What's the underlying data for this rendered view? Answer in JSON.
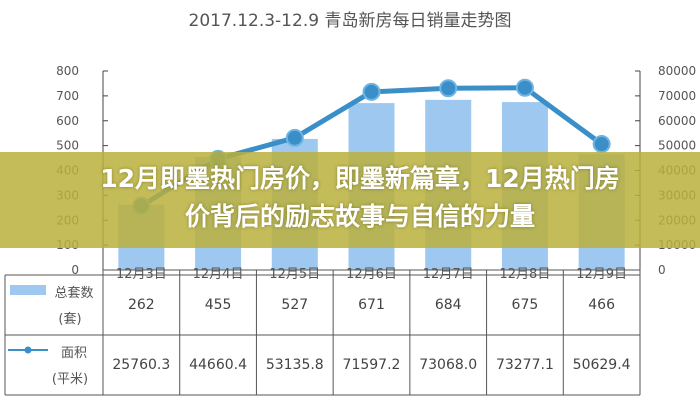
{
  "banner": {
    "title": "12月即墨热门房价，即墨新篇章，12月热门房价背后的励志故事与自信的力量"
  },
  "chart_data": {
    "type": "bar+line",
    "title": "2017.12.3-12.9  青岛新房每日销量走势图",
    "categories": [
      "12月3日",
      "12月4日",
      "12月5日",
      "12月6日",
      "12月7日",
      "12月8日",
      "12月9日"
    ],
    "series": [
      {
        "name": "总套数(套)",
        "type": "bar",
        "axis": "left",
        "values": [
          262,
          455,
          527,
          671,
          684,
          675,
          466
        ],
        "color": "#9ec8f0"
      },
      {
        "name": "面积(平米)",
        "type": "line",
        "axis": "right",
        "values": [
          25760.3,
          44660.4,
          53135.8,
          71597.2,
          73068.0,
          73277.1,
          50629.4
        ],
        "color": "#3a8fc8"
      }
    ],
    "left_ticks": [
      "0",
      "100",
      "200",
      "300",
      "400",
      "500",
      "600",
      "700",
      "800"
    ],
    "right_ticks": [
      "0",
      "10000",
      "20000",
      "30000",
      "40000",
      "50000",
      "60000",
      "70000",
      "80000"
    ],
    "ylim_left": [
      0,
      800
    ],
    "ylim_right": [
      0,
      80000
    ],
    "table": {
      "rows": [
        {
          "label": "总套数",
          "unit": "(套)",
          "values": [
            "262",
            "455",
            "527",
            "671",
            "684",
            "675",
            "466"
          ]
        },
        {
          "label": "面积",
          "unit": "(平米)",
          "values": [
            "25760.3",
            "44660.4",
            "53135.8",
            "71597.2",
            "73068.0",
            "73277.1",
            "50629.4"
          ]
        }
      ]
    }
  }
}
